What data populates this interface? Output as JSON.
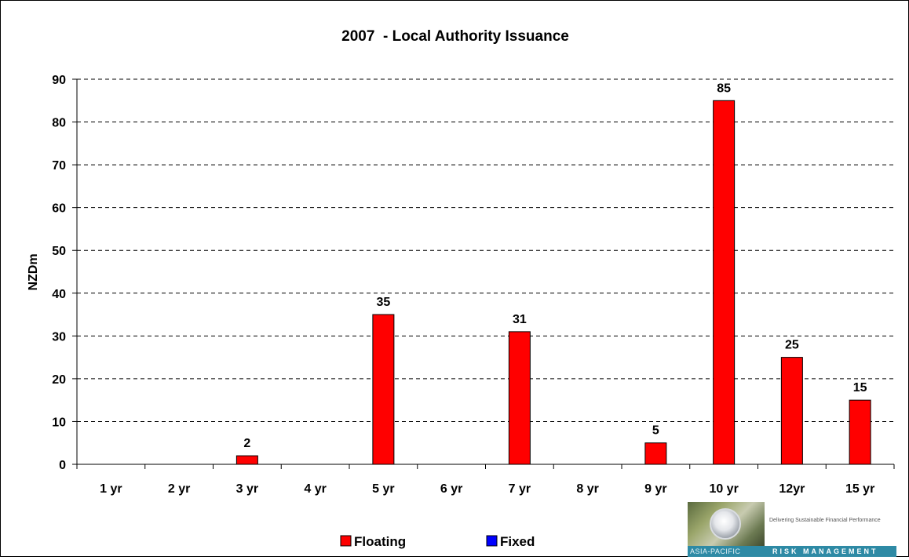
{
  "chart_data": {
    "type": "bar",
    "title": "2007  - Local Authority Issuance",
    "xlabel": "",
    "ylabel": "NZDm",
    "ylim": [
      0,
      90
    ],
    "ytick_step": 10,
    "grid": "horizontal-dashed",
    "legend_position": "bottom",
    "categories": [
      "1 yr",
      "2 yr",
      "3 yr",
      "4 yr",
      "5 yr",
      "6 yr",
      "7 yr",
      "8 yr",
      "9 yr",
      "10 yr",
      "12yr",
      "15 yr"
    ],
    "series": [
      {
        "name": "Floating",
        "color": "#ff0000",
        "values": [
          0,
          0,
          2,
          0,
          35,
          0,
          31,
          0,
          5,
          85,
          25,
          15
        ],
        "labels": [
          "",
          "",
          "2",
          "",
          "35",
          "",
          "31",
          "",
          "5",
          "85",
          "25",
          "15"
        ]
      },
      {
        "name": "Fixed",
        "color": "#0000ff",
        "values": [
          0,
          0,
          0,
          0,
          0,
          0,
          0,
          0,
          0,
          0,
          0,
          0
        ],
        "labels": [
          "",
          "",
          "",
          "",
          "",
          "",
          "",
          "",
          "",
          "",
          "",
          ""
        ]
      }
    ]
  },
  "logo": {
    "tagline": "Delivering Sustainable Financial Performance",
    "left_text": "ASIA-PACIFIC",
    "right_text": "RISK MANAGEMENT"
  }
}
